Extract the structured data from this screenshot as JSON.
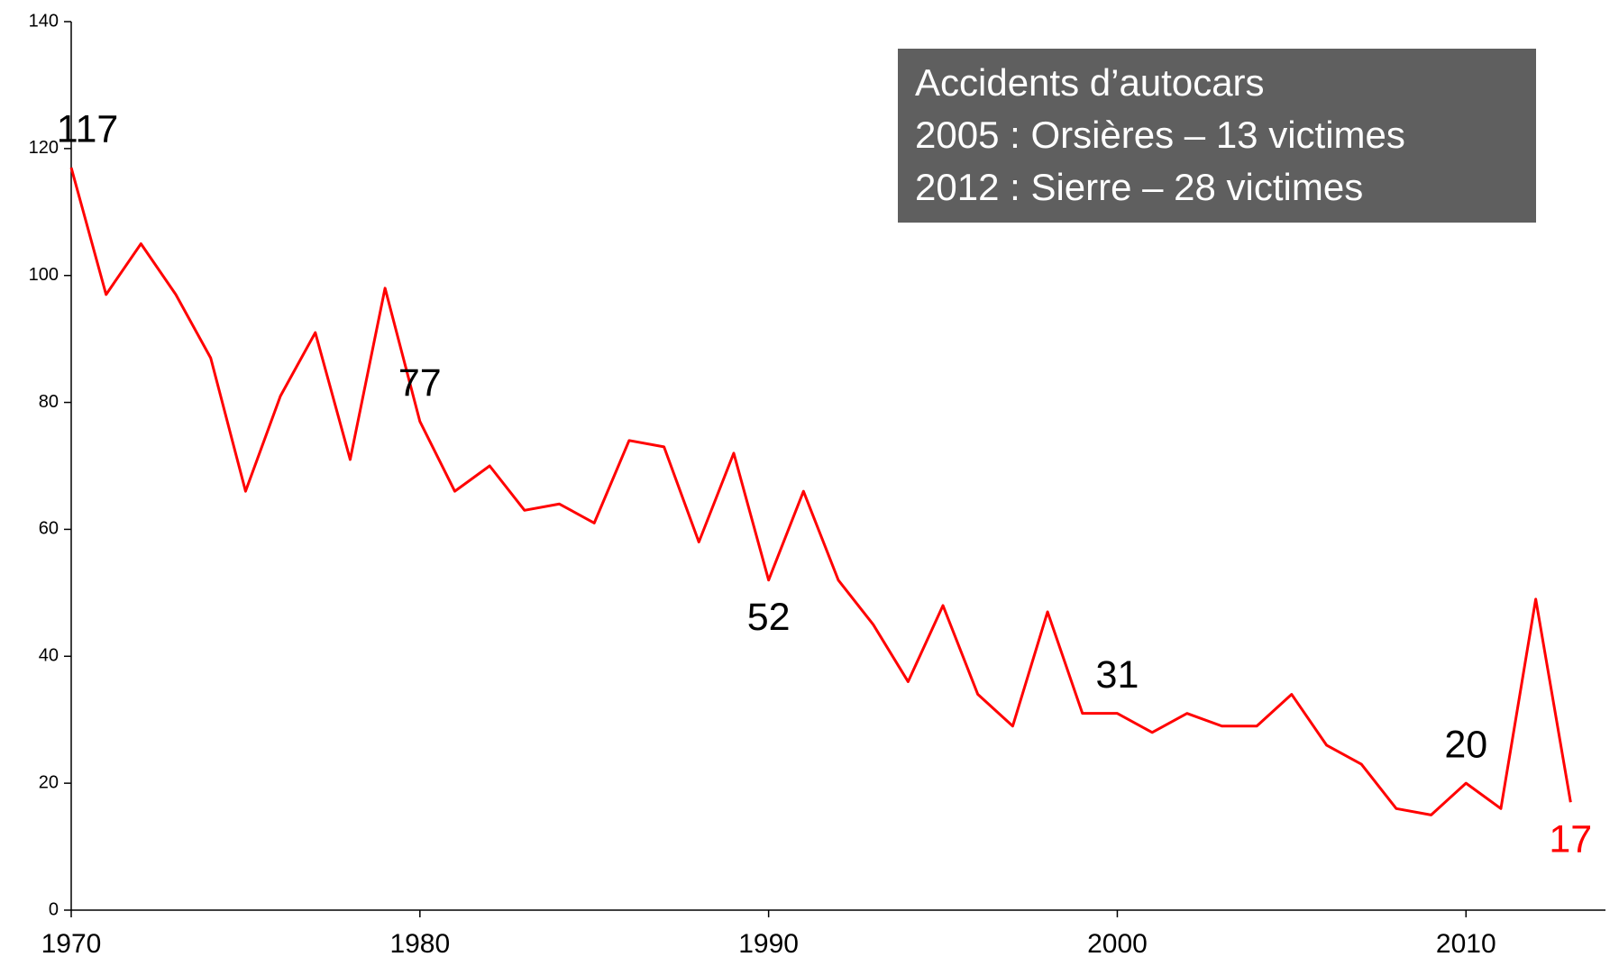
{
  "chart_data": {
    "type": "line",
    "annotation": [
      "Accidents d’autocars",
      "2005 : Orsières – 13 victimes",
      "2012 : Sierre – 28 victimes"
    ],
    "x": [
      1970,
      1971,
      1972,
      1973,
      1974,
      1975,
      1976,
      1977,
      1978,
      1979,
      1980,
      1981,
      1982,
      1983,
      1984,
      1985,
      1986,
      1987,
      1988,
      1989,
      1990,
      1991,
      1992,
      1993,
      1994,
      1995,
      1996,
      1997,
      1998,
      1999,
      2000,
      2001,
      2002,
      2003,
      2004,
      2005,
      2006,
      2007,
      2008,
      2009,
      2010,
      2011,
      2012,
      2013
    ],
    "series": [
      {
        "color": "#ff0000",
        "values": [
          117,
          97,
          105,
          97,
          87,
          66,
          81,
          91,
          71,
          98,
          77,
          66,
          70,
          63,
          64,
          61,
          74,
          73,
          58,
          72,
          52,
          66,
          52,
          45,
          36,
          48,
          34,
          29,
          47,
          31,
          31,
          28,
          31,
          29,
          29,
          34,
          26,
          23,
          16,
          15,
          20,
          16,
          49,
          17
        ],
        "value_labels": [
          "117",
          null,
          null,
          null,
          null,
          null,
          null,
          null,
          null,
          null,
          "77",
          null,
          null,
          null,
          null,
          null,
          null,
          null,
          null,
          null,
          "52",
          null,
          null,
          null,
          null,
          null,
          null,
          null,
          null,
          null,
          "31",
          null,
          null,
          null,
          null,
          null,
          null,
          null,
          null,
          null,
          "20",
          null,
          null,
          "17"
        ]
      }
    ],
    "xlim": [
      1970,
      2014
    ],
    "xticks": [
      1970,
      1980,
      1990,
      2000,
      2010
    ],
    "ylim": [
      0,
      140
    ],
    "yticks": [
      0,
      20,
      40,
      60,
      80,
      100,
      120,
      140
    ],
    "grid": false
  }
}
